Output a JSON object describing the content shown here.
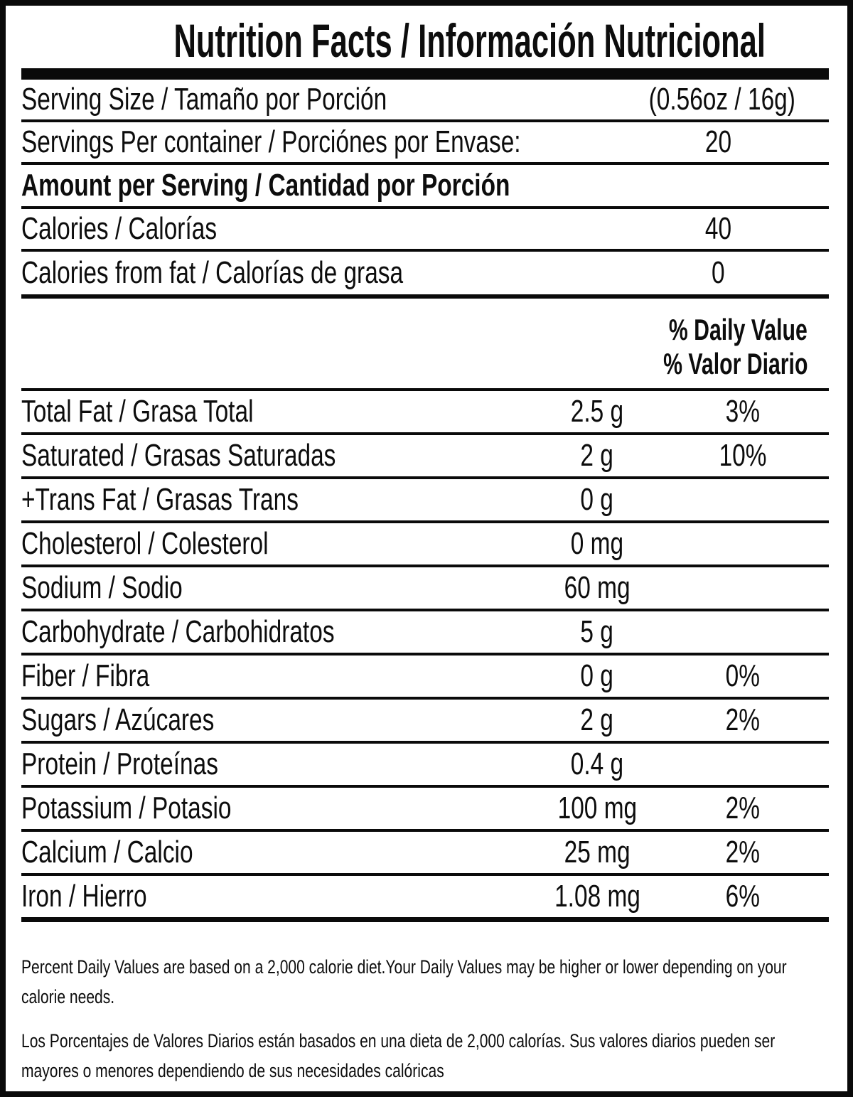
{
  "title": "Nutrition Facts / Información Nutricional",
  "serving_size": {
    "label": "Serving Size / Tamaño por Porción",
    "value": "(0.56oz / 16g)"
  },
  "servings_per_container": {
    "label": "Servings Per container / Porciónes por Envase:",
    "value": "20"
  },
  "amount_per_serving_header": "Amount per Serving / Cantidad por Porción",
  "calories": {
    "label": "Calories / Calorías",
    "value": "40"
  },
  "calories_from_fat": {
    "label": "Calories from fat / Calorías de grasa",
    "value": "0"
  },
  "daily_value_header": {
    "en": "% Daily Value",
    "es": "% Valor Diario"
  },
  "nutrients": [
    {
      "label": "Total Fat / Grasa Total",
      "amount": "2.5 g",
      "daily_value": "3%"
    },
    {
      "label": "Saturated / Grasas Saturadas",
      "amount": "2 g",
      "daily_value": "10%"
    },
    {
      "label": "+Trans Fat / Grasas Trans",
      "amount": "0 g",
      "daily_value": ""
    },
    {
      "label": "Cholesterol / Colesterol",
      "amount": "0 mg",
      "daily_value": ""
    },
    {
      "label": "Sodium / Sodio",
      "amount": "60 mg",
      "daily_value": ""
    },
    {
      "label": "Carbohydrate / Carbohidratos",
      "amount": "5 g",
      "daily_value": ""
    },
    {
      "label": "Fiber / Fibra",
      "amount": "0 g",
      "daily_value": "0%"
    },
    {
      "label": "Sugars / Azúcares",
      "amount": "2 g",
      "daily_value": "2%"
    },
    {
      "label": "Protein / Proteínas",
      "amount": "0.4 g",
      "daily_value": ""
    },
    {
      "label": "Potassium / Potasio",
      "amount": "100 mg",
      "daily_value": "2%"
    },
    {
      "label": "Calcium / Calcio",
      "amount": "25 mg",
      "daily_value": "2%"
    },
    {
      "label": "Iron / Hierro",
      "amount": "1.08 mg",
      "daily_value": "6%"
    }
  ],
  "footnotes": {
    "english": "Percent Daily Values are based on a 2,000 calorie diet.Your Daily Values may be higher or lower depending on your calorie needs.",
    "spanish": "Los Porcentajes de Valores Diarios están basados en una dieta de 2,000 calorías. Sus valores diarios pueden ser mayores o menores dependiendo de sus necesidades calóricas"
  },
  "colors": {
    "text": "#0d0d0d",
    "background": "#ffffff",
    "rule": "#0a0a0a"
  }
}
